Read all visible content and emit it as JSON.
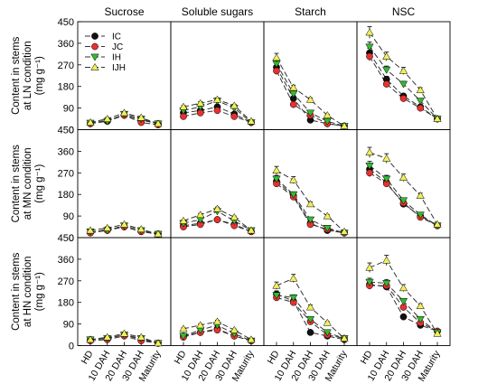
{
  "chart_data": {
    "type": "line",
    "columns": [
      "Sucrose",
      "Soluble sugars",
      "Starch",
      "NSC"
    ],
    "rows": [
      [
        "Content in stems",
        "at LN condition",
        "(mg g⁻¹)"
      ],
      [
        "Content in stems",
        "at MN condition",
        "(mg g⁻¹)"
      ],
      [
        "Content in stems",
        "at HN condition",
        "(mg g⁻¹)"
      ]
    ],
    "x": [
      "HD",
      "10 DAH",
      "20 DAH",
      "30 DAH",
      "Maturity"
    ],
    "yticks": [
      "0",
      "90",
      "180",
      "270",
      "360",
      "450"
    ],
    "ylim": [
      0,
      450
    ],
    "legend": {
      "placement": "top-left",
      "entries": [
        {
          "name": "IC",
          "color": "#111111",
          "marker": "circle"
        },
        {
          "name": "JC",
          "color": "#e8312f",
          "marker": "circle"
        },
        {
          "name": "IH",
          "color": "#33bb33",
          "marker": "triangle-down"
        },
        {
          "name": "IJH",
          "color": "#f2ef5a",
          "marker": "triangle-up"
        }
      ]
    },
    "panels": [
      [
        {
          "series": [
            [
              25,
              35,
              60,
              40,
              25
            ],
            [
              25,
              40,
              60,
              30,
              20
            ],
            [
              28,
              35,
              65,
              45,
              25
            ],
            [
              30,
              45,
              70,
              50,
              25
            ]
          ]
        },
        {
          "series": [
            [
              70,
              80,
              95,
              65,
              30
            ],
            [
              55,
              70,
              80,
              55,
              30
            ],
            [
              80,
              95,
              120,
              90,
              30
            ],
            [
              95,
              110,
              125,
              100,
              35
            ]
          ]
        },
        {
          "series": [
            [
              260,
              130,
              40,
              25,
              15
            ],
            [
              245,
              105,
              60,
              25,
              15
            ],
            [
              275,
              150,
              70,
              35,
              15
            ],
            [
              300,
              175,
              125,
              60,
              15
            ]
          ]
        },
        {
          "series": [
            [
              320,
              210,
              140,
              95,
              45
            ],
            [
              305,
              190,
              130,
              90,
              45
            ],
            [
              345,
              250,
              190,
              120,
              45
            ],
            [
              405,
              305,
              245,
              165,
              45
            ]
          ]
        }
      ],
      [
        {
          "series": [
            [
              20,
              35,
              45,
              25,
              15
            ],
            [
              20,
              30,
              45,
              25,
              15
            ],
            [
              25,
              30,
              50,
              30,
              15
            ],
            [
              30,
              40,
              55,
              35,
              15
            ]
          ]
        },
        {
          "series": [
            [
              50,
              60,
              75,
              55,
              25
            ],
            [
              45,
              55,
              75,
              50,
              25
            ],
            [
              60,
              75,
              110,
              70,
              30
            ],
            [
              70,
              95,
              120,
              85,
              30
            ]
          ]
        },
        {
          "series": [
            [
              235,
              175,
              60,
              30,
              20
            ],
            [
              225,
              170,
              55,
              35,
              20
            ],
            [
              245,
              180,
              75,
              40,
              20
            ],
            [
              280,
              240,
              140,
              90,
              25
            ]
          ]
        },
        {
          "series": [
            [
              285,
              230,
              140,
              90,
              50
            ],
            [
              270,
              225,
              145,
              85,
              50
            ],
            [
              300,
              245,
              155,
              95,
              50
            ],
            [
              355,
              330,
              250,
              175,
              55
            ]
          ]
        }
      ],
      [
        {
          "series": [
            [
              25,
              30,
              45,
              25,
              10
            ],
            [
              20,
              25,
              40,
              20,
              10
            ],
            [
              25,
              30,
              45,
              30,
              10
            ],
            [
              25,
              35,
              50,
              35,
              10
            ]
          ]
        },
        {
          "series": [
            [
              40,
              55,
              70,
              40,
              20
            ],
            [
              35,
              55,
              65,
              40,
              20
            ],
            [
              40,
              65,
              85,
              50,
              20
            ],
            [
              70,
              85,
              100,
              65,
              25
            ]
          ]
        },
        {
          "series": [
            [
              215,
              185,
              55,
              40,
              25
            ],
            [
              200,
              180,
              100,
              45,
              30
            ],
            [
              210,
              200,
              110,
              55,
              30
            ],
            [
              250,
              280,
              160,
              95,
              30
            ]
          ]
        },
        {
          "series": [
            [
              255,
              245,
              120,
              85,
              60
            ],
            [
              250,
              250,
              160,
              95,
              60
            ],
            [
              265,
              260,
              185,
              110,
              55
            ],
            [
              325,
              355,
              240,
              165,
              50
            ]
          ]
        }
      ]
    ]
  }
}
